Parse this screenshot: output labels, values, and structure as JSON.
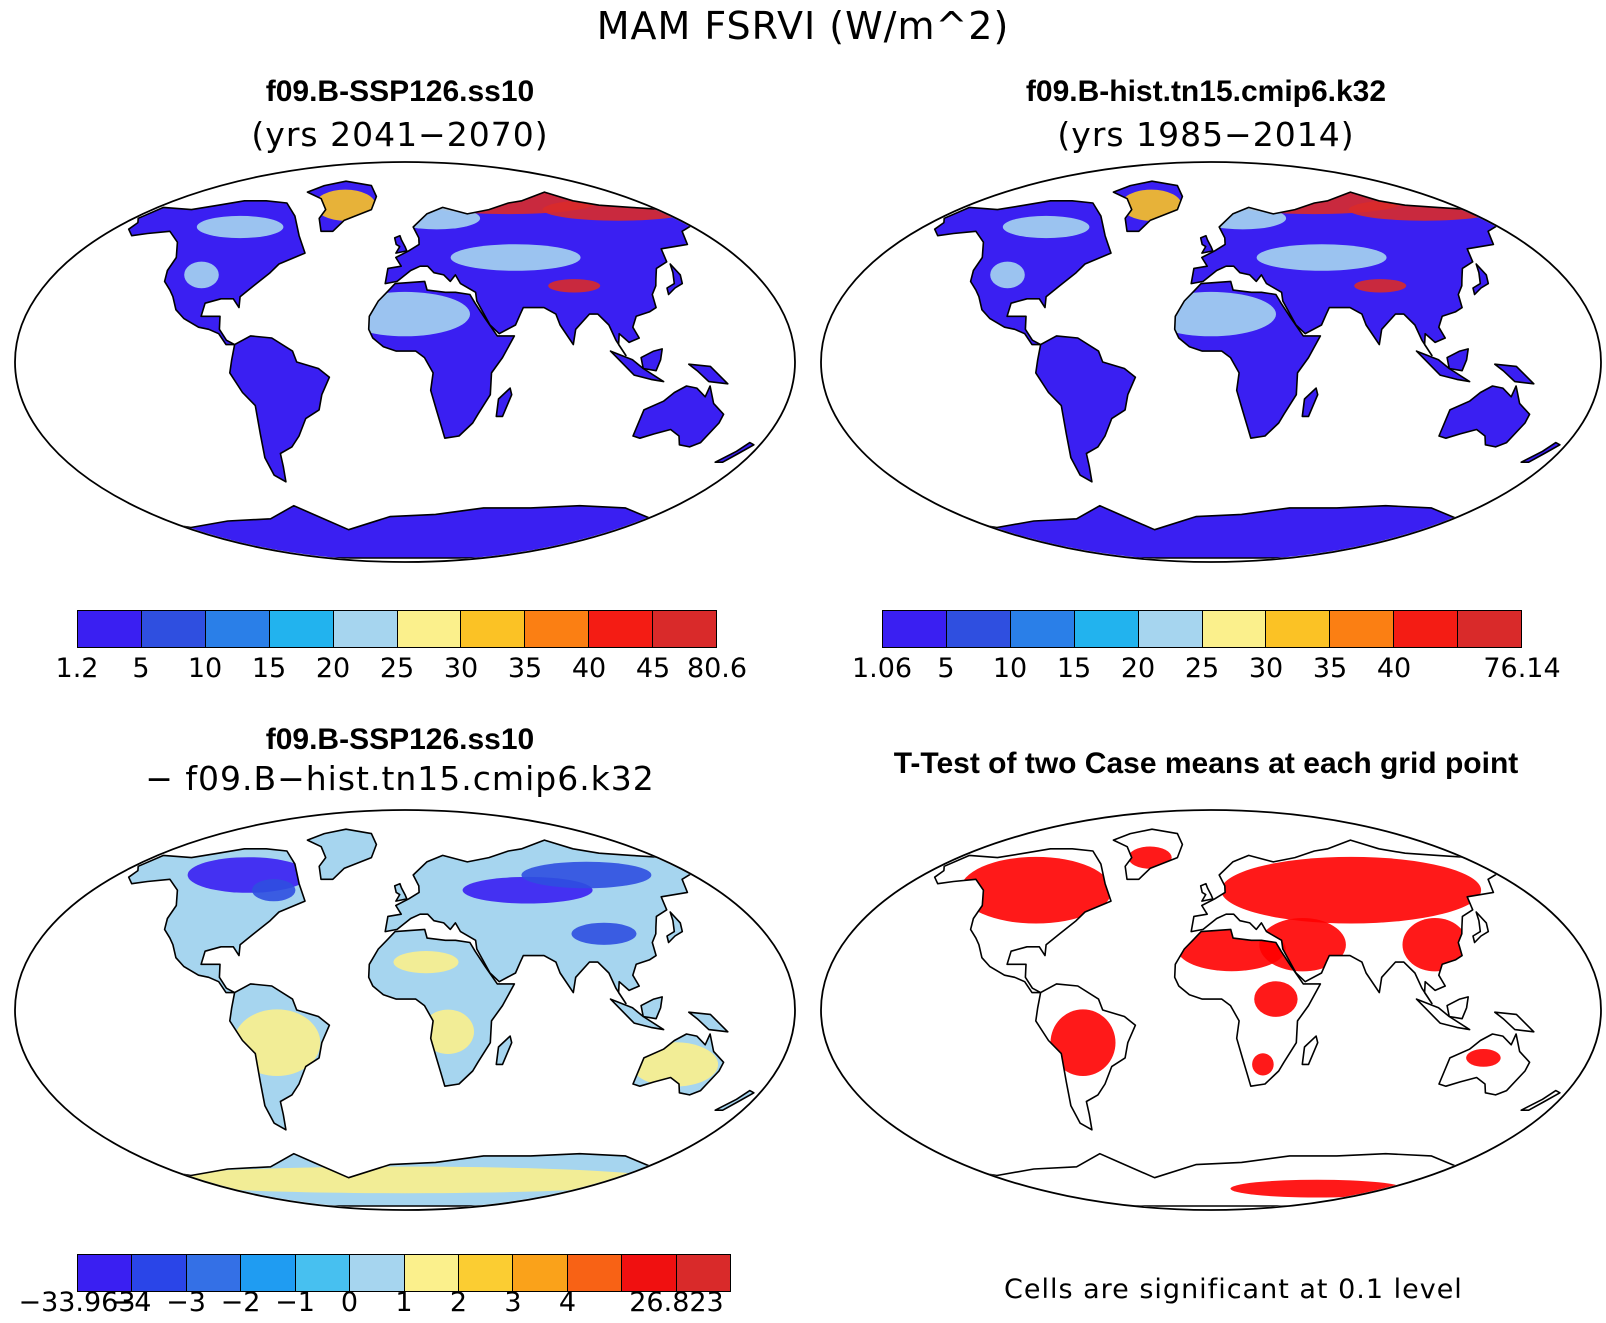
{
  "title": "MAM FSRVI (W/m^2)",
  "panels": {
    "top_left": {
      "title": "f09.B-SSP126.ss10",
      "subtitle": "(yrs 2041−2070)"
    },
    "top_right": {
      "title": "f09.B-hist.tn15.cmip6.k32",
      "subtitle": "(yrs 1985−2014)"
    },
    "bottom_left": {
      "title": "f09.B-SSP126.ss10",
      "subtitle": "− f09.B−hist.tn15.cmip6.k32"
    },
    "bottom_right": {
      "title": "T-Test of two Case means at each grid point",
      "note": "Cells are significant at 0.1 level"
    }
  },
  "colorbars": {
    "top_left": {
      "colors": [
        "#3a1ff2",
        "#2f4fe0",
        "#2a7fe8",
        "#22b3ee",
        "#a6d5ef",
        "#fbf08c",
        "#fbc225",
        "#fb7f13",
        "#f41c14",
        "#d92a2a"
      ],
      "labels": [
        "1.2",
        "5",
        "10",
        "15",
        "20",
        "25",
        "30",
        "35",
        "40",
        "45",
        "80.6"
      ]
    },
    "top_right": {
      "colors": [
        "#3a1ff2",
        "#2f4fe0",
        "#2a7fe8",
        "#22b3ee",
        "#a6d5ef",
        "#fbf08c",
        "#fbc225",
        "#fb7f13",
        "#f41c14",
        "#d92a2a"
      ],
      "labels": [
        "1.06",
        "5",
        "10",
        "15",
        "20",
        "25",
        "30",
        "35",
        "40",
        "",
        "76.14"
      ]
    },
    "bottom_left": {
      "colors": [
        "#3a1ff2",
        "#2a45e8",
        "#3470e6",
        "#1f9cf2",
        "#47c0f0",
        "#a6d5ef",
        "#fbf08c",
        "#fbcd32",
        "#faa21a",
        "#f86215",
        "#f01010",
        "#d92a2a"
      ],
      "labels": [
        "−33.963",
        "−4",
        "−3",
        "−2",
        "−1",
        "0",
        "1",
        "2",
        "3",
        "4",
        "",
        "26.823"
      ]
    },
    "tick_label_positions": {
      "bottom_left": [
        0,
        1,
        2,
        3,
        4,
        6,
        7,
        8,
        9,
        10,
        11,
        12
      ]
    }
  },
  "maps": {
    "top_left": {
      "land": "#3a1ff2",
      "ocean": "#ffffff",
      "high": "#d92a2a",
      "mid": "#fbc225",
      "light": "#a6d5ef"
    },
    "top_right": {
      "land": "#3a1ff2",
      "ocean": "#ffffff",
      "high": "#d92a2a",
      "mid": "#fbc225",
      "light": "#a6d5ef"
    },
    "bottom_left": {
      "land": "#a6d5ef",
      "ocean": "#ffffff",
      "high": "#3a1ff2",
      "mid": "#2f4fe0",
      "light": "#fbf08c"
    },
    "bottom_right": {
      "land": "#ffffff",
      "ocean": "#ffffff",
      "high": "#ff0000",
      "mid": "#ff0000",
      "light": "#ff0000"
    }
  }
}
